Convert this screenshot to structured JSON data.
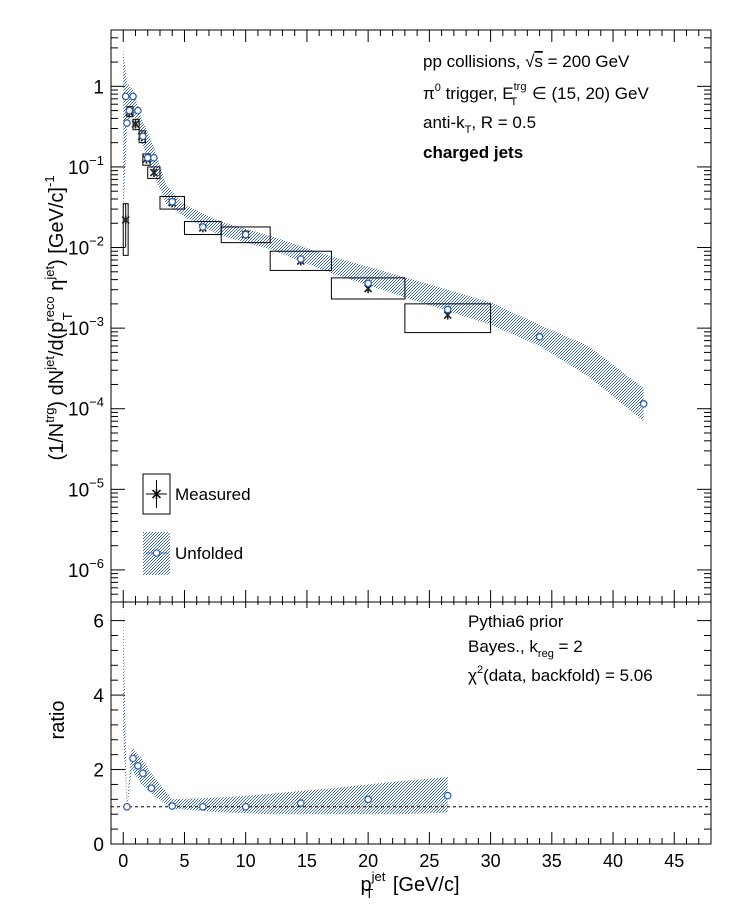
{
  "chart_data": [
    {
      "type": "scatter",
      "panel": "top",
      "scale": "log",
      "xlim": [
        -1,
        48
      ],
      "ylim": [
        4e-07,
        5
      ],
      "ylabel": {
        "t1": "(1/N",
        "t1_sup": "trg",
        "t2": ") dN",
        "t2_sup": "jet",
        "t3": "/d(p",
        "t3_sup": "reco",
        "t3_sub": "T",
        "t4": " η",
        "t4_sup": "jet",
        "t5": ") [GeV/c]",
        "t5_sup": "-1"
      },
      "yticks": [
        {
          "value": 1e-06,
          "base": "10",
          "exp": "−6"
        },
        {
          "value": 1e-05,
          "base": "10",
          "exp": "−5"
        },
        {
          "value": 0.0001,
          "base": "10",
          "exp": "−4"
        },
        {
          "value": 0.001,
          "base": "10",
          "exp": "−3"
        },
        {
          "value": 0.01,
          "base": "10",
          "exp": "−2"
        },
        {
          "value": 0.1,
          "base": "10",
          "exp": "−1"
        },
        {
          "value": 1,
          "base": "1",
          "exp": ""
        }
      ],
      "annotations": {
        "line1_pre": "pp collisions, ",
        "line1_sqrt": "√",
        "line1_s": "s",
        "line1_post": " = 200 GeV",
        "line2_pi": "π",
        "line2_pi_sup": "0",
        "line2_mid": " trigger, E",
        "line2_E_sup": "trg",
        "line2_E_sub": "T",
        "line2_post": " ∈ (15, 20) GeV",
        "line3_pre": "anti-k",
        "line3_sub": "T",
        "line3_post": ", R = 0.5",
        "line4": "charged jets"
      },
      "legend": {
        "measured": "Measured",
        "unfolded": "Unfolded",
        "position": "bottom-left"
      },
      "measured": [
        {
          "x": 0.2,
          "y": 0.022,
          "ylo": 0.01,
          "yhi": 0.035,
          "x0": 0.0,
          "x1": 0.4,
          "b0": 0.008,
          "b1": 0.035
        },
        {
          "x": 0.5,
          "y": 0.48,
          "ylo": 0.42,
          "yhi": 0.55,
          "x0": 0.3,
          "x1": 0.8,
          "b0": 0.42,
          "b1": 0.56
        },
        {
          "x": 1.0,
          "y": 0.34,
          "ylo": 0.3,
          "yhi": 0.38,
          "x0": 0.8,
          "x1": 1.3,
          "b0": 0.29,
          "b1": 0.39
        },
        {
          "x": 1.5,
          "y": 0.24,
          "ylo": 0.21,
          "yhi": 0.27,
          "x0": 1.3,
          "x1": 1.8,
          "b0": 0.2,
          "b1": 0.28
        },
        {
          "x": 1.9,
          "y": 0.125,
          "ylo": 0.11,
          "yhi": 0.14,
          "x0": 1.6,
          "x1": 2.2,
          "b0": 0.105,
          "b1": 0.145
        },
        {
          "x": 2.5,
          "y": 0.085,
          "ylo": 0.075,
          "yhi": 0.095,
          "x0": 2.0,
          "x1": 3.0,
          "b0": 0.072,
          "b1": 0.1
        },
        {
          "x": 4.0,
          "y": 0.036,
          "ylo": 0.032,
          "yhi": 0.04,
          "x0": 3.0,
          "x1": 5.0,
          "b0": 0.03,
          "b1": 0.043
        },
        {
          "x": 6.5,
          "y": 0.0175,
          "ylo": 0.016,
          "yhi": 0.019,
          "x0": 5.0,
          "x1": 8.0,
          "b0": 0.0145,
          "b1": 0.021
        },
        {
          "x": 10.0,
          "y": 0.0145,
          "ylo": 0.0135,
          "yhi": 0.0155,
          "x0": 8.0,
          "x1": 12.0,
          "b0": 0.0115,
          "b1": 0.018
        },
        {
          "x": 14.5,
          "y": 0.0068,
          "ylo": 0.0062,
          "yhi": 0.0074,
          "x0": 12.0,
          "x1": 17.0,
          "b0": 0.0052,
          "b1": 0.009
        },
        {
          "x": 20.0,
          "y": 0.0031,
          "ylo": 0.0028,
          "yhi": 0.0034,
          "x0": 17.0,
          "x1": 23.0,
          "b0": 0.0023,
          "b1": 0.0042
        },
        {
          "x": 26.5,
          "y": 0.00145,
          "ylo": 0.0013,
          "yhi": 0.0016,
          "x0": 23.0,
          "x1": 30.0,
          "b0": 0.00088,
          "b1": 0.002
        }
      ],
      "unfolded": [
        {
          "x": 0.2,
          "y": 0.75
        },
        {
          "x": 0.3,
          "y": 0.35
        },
        {
          "x": 0.5,
          "y": 0.5
        },
        {
          "x": 0.8,
          "y": 0.75
        },
        {
          "x": 1.2,
          "y": 0.5
        },
        {
          "x": 1.6,
          "y": 0.24
        },
        {
          "x": 2.0,
          "y": 0.13
        },
        {
          "x": 2.5,
          "y": 0.13
        },
        {
          "x": 4.0,
          "y": 0.037
        },
        {
          "x": 6.5,
          "y": 0.018
        },
        {
          "x": 10.0,
          "y": 0.0145
        },
        {
          "x": 14.5,
          "y": 0.0072
        },
        {
          "x": 20.0,
          "y": 0.0036
        },
        {
          "x": 26.5,
          "y": 0.0017
        },
        {
          "x": 34.0,
          "y": 0.00078
        },
        {
          "x": 42.5,
          "y": 0.000115
        }
      ],
      "unfolded_band": [
        {
          "x": 0.0,
          "lo": 0.02,
          "hi": 3.0
        },
        {
          "x": 0.3,
          "lo": 0.3,
          "hi": 1.1
        },
        {
          "x": 0.8,
          "lo": 0.5,
          "hi": 0.9
        },
        {
          "x": 1.5,
          "lo": 0.2,
          "hi": 0.4
        },
        {
          "x": 2.5,
          "lo": 0.08,
          "hi": 0.18
        },
        {
          "x": 3.5,
          "lo": 0.035,
          "hi": 0.06
        },
        {
          "x": 5.0,
          "lo": 0.024,
          "hi": 0.034
        },
        {
          "x": 8.0,
          "lo": 0.014,
          "hi": 0.021
        },
        {
          "x": 12.0,
          "lo": 0.0095,
          "hi": 0.014
        },
        {
          "x": 17.0,
          "lo": 0.0048,
          "hi": 0.0078
        },
        {
          "x": 23.0,
          "lo": 0.0024,
          "hi": 0.0043
        },
        {
          "x": 30.0,
          "lo": 0.0011,
          "hi": 0.0021
        },
        {
          "x": 34.0,
          "lo": 0.0006,
          "hi": 0.0011
        },
        {
          "x": 38.0,
          "lo": 0.00025,
          "hi": 0.0006
        },
        {
          "x": 42.5,
          "lo": 7e-05,
          "hi": 0.00018
        }
      ]
    },
    {
      "type": "scatter",
      "panel": "bottom",
      "xlim": [
        -1,
        48
      ],
      "ylim": [
        0,
        6.5
      ],
      "ylabel": "ratio",
      "xlabel": {
        "p": "p",
        "sup": "jet",
        "sub": "T",
        "post": " [GeV/c]"
      },
      "xticks": [
        0,
        5,
        10,
        15,
        20,
        25,
        30,
        35,
        40,
        45
      ],
      "yticks": [
        0,
        2,
        4,
        6
      ],
      "reference_line": 1,
      "annotations": {
        "line1": "Pythia6 prior",
        "line2_pre": "Bayes., k",
        "line2_sub": "reg",
        "line2_post": " = 2",
        "line3_pre": "χ",
        "line3_sup": "2",
        "line3_post": "(data, backfold) = 5.06"
      },
      "points": [
        {
          "x": 0.3,
          "y": 1.0
        },
        {
          "x": 0.8,
          "y": 2.3
        },
        {
          "x": 1.2,
          "y": 2.1
        },
        {
          "x": 1.6,
          "y": 1.9
        },
        {
          "x": 2.3,
          "y": 1.5
        },
        {
          "x": 4.0,
          "y": 1.02
        },
        {
          "x": 6.5,
          "y": 1.0
        },
        {
          "x": 10.0,
          "y": 1.0
        },
        {
          "x": 14.5,
          "y": 1.1
        },
        {
          "x": 20.0,
          "y": 1.2
        },
        {
          "x": 26.5,
          "y": 1.3
        }
      ],
      "band": [
        {
          "x": 0.0,
          "lo": 3.0,
          "hi": 6.5
        },
        {
          "x": 0.3,
          "lo": 0.9,
          "hi": 1.1
        },
        {
          "x": 0.7,
          "lo": 2.0,
          "hi": 2.6
        },
        {
          "x": 1.5,
          "lo": 1.6,
          "hi": 2.3
        },
        {
          "x": 2.5,
          "lo": 1.3,
          "hi": 1.8
        },
        {
          "x": 4.0,
          "lo": 0.95,
          "hi": 1.2
        },
        {
          "x": 8.0,
          "lo": 0.85,
          "hi": 1.25
        },
        {
          "x": 12.0,
          "lo": 0.8,
          "hi": 1.35
        },
        {
          "x": 17.0,
          "lo": 0.8,
          "hi": 1.5
        },
        {
          "x": 23.0,
          "lo": 0.8,
          "hi": 1.7
        },
        {
          "x": 26.5,
          "lo": 0.85,
          "hi": 1.8
        }
      ]
    }
  ]
}
